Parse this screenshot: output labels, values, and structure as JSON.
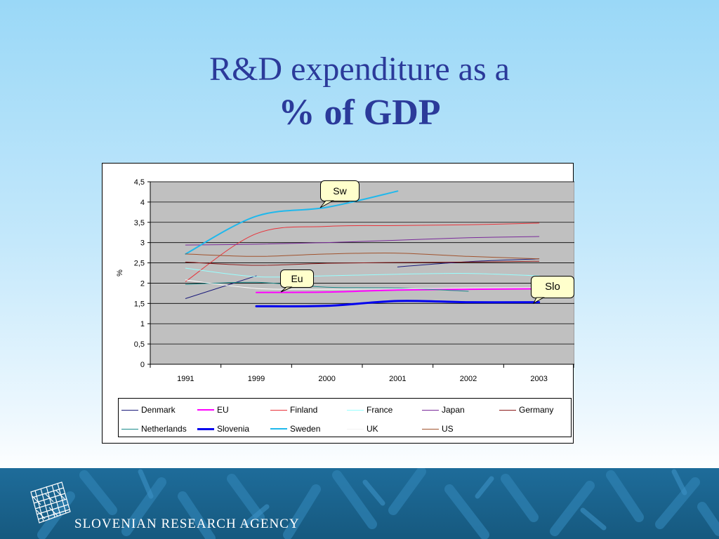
{
  "slide": {
    "title_line1": "R&D expenditure as a",
    "title_line2": "% of GDP",
    "agency_name": "SLOVENIAN RESEARCH AGENCY"
  },
  "callouts": {
    "sweden": "Sw",
    "eu": "Eu",
    "slovenia": "Slo"
  },
  "chart_data": {
    "type": "line",
    "title": "",
    "xlabel": "",
    "ylabel": "%",
    "categories": [
      "1991",
      "1999",
      "2000",
      "2001",
      "2002",
      "2003"
    ],
    "y_ticks": [
      "0",
      "0,5",
      "1",
      "1,5",
      "2",
      "2,5",
      "3",
      "3,5",
      "4",
      "4,5"
    ],
    "ylim": [
      0,
      4.5
    ],
    "grid": "horizontal",
    "legend_position": "bottom",
    "plot_background": "#c0c0c0",
    "series": [
      {
        "name": "Denmark",
        "color": "#1a1a7a",
        "width": 1,
        "values": [
          1.62,
          2.18,
          null,
          2.4,
          2.53,
          2.6
        ]
      },
      {
        "name": "EU",
        "color": "#ff00ff",
        "width": 2,
        "values": [
          null,
          1.77,
          1.78,
          1.83,
          1.85,
          1.86
        ]
      },
      {
        "name": "Finland",
        "color": "#e8333a",
        "width": 1,
        "values": [
          2.04,
          3.22,
          3.4,
          3.42,
          3.44,
          3.48
        ]
      },
      {
        "name": "France",
        "color": "#99ffff",
        "width": 1,
        "values": [
          2.37,
          2.16,
          2.18,
          2.22,
          2.24,
          2.18
        ]
      },
      {
        "name": "Japan",
        "color": "#7a2a9a",
        "width": 1,
        "values": [
          2.94,
          2.96,
          3.0,
          3.06,
          3.12,
          3.15
        ]
      },
      {
        "name": "Germany",
        "color": "#8b1a1a",
        "width": 1,
        "values": [
          2.52,
          2.44,
          2.49,
          2.51,
          2.52,
          2.54
        ]
      },
      {
        "name": "Netherlands",
        "color": "#1a8a8a",
        "width": 1,
        "values": [
          1.97,
          2.02,
          1.9,
          1.88,
          1.8,
          null
        ]
      },
      {
        "name": "Slovenia",
        "color": "#0000ee",
        "width": 3,
        "values": [
          null,
          1.43,
          1.44,
          1.56,
          1.53,
          1.53
        ]
      },
      {
        "name": "Sweden",
        "color": "#1fb8ec",
        "width": 2,
        "values": [
          2.72,
          3.65,
          3.87,
          4.27,
          null,
          null
        ]
      },
      {
        "name": "UK",
        "color": "#ffffff",
        "width": 1,
        "values": [
          2.08,
          1.87,
          1.85,
          1.86,
          1.88,
          1.89
        ]
      },
      {
        "name": "US",
        "color": "#a0522d",
        "width": 1,
        "values": [
          2.72,
          2.66,
          2.72,
          2.74,
          2.66,
          2.6
        ]
      }
    ]
  }
}
